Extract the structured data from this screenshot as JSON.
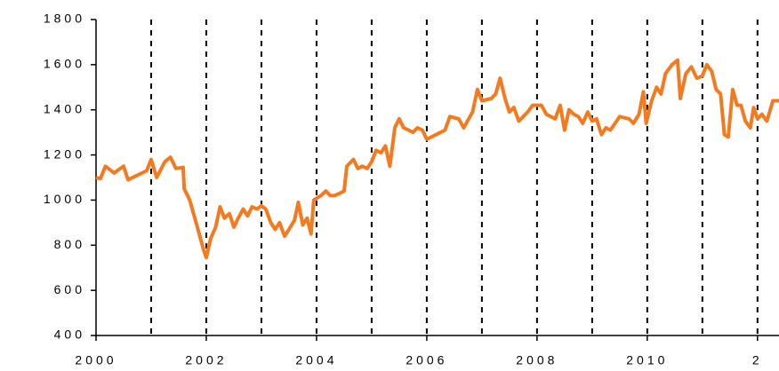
{
  "chart_data": {
    "type": "line",
    "x": [
      2000.0,
      2000.08,
      2000.17,
      2000.33,
      2000.5,
      2000.58,
      2000.75,
      2000.92,
      2001.0,
      2001.1,
      2001.25,
      2001.35,
      2001.45,
      2001.58,
      2001.6,
      2001.7,
      2001.85,
      2001.95,
      2002.0,
      2002.08,
      2002.17,
      2002.25,
      2002.33,
      2002.42,
      2002.5,
      2002.58,
      2002.67,
      2002.75,
      2002.83,
      2002.92,
      2003.0,
      2003.08,
      2003.17,
      2003.25,
      2003.33,
      2003.42,
      2003.5,
      2003.6,
      2003.67,
      2003.75,
      2003.83,
      2003.9,
      2003.95,
      2004.08,
      2004.17,
      2004.25,
      2004.33,
      2004.42,
      2004.5,
      2004.55,
      2004.67,
      2004.75,
      2004.83,
      2004.92,
      2005.0,
      2005.08,
      2005.17,
      2005.25,
      2005.33,
      2005.42,
      2005.5,
      2005.58,
      2005.67,
      2005.75,
      2005.83,
      2005.92,
      2006.0,
      2006.17,
      2006.33,
      2006.42,
      2006.58,
      2006.67,
      2006.83,
      2006.92,
      2007.0,
      2007.17,
      2007.25,
      2007.33,
      2007.42,
      2007.5,
      2007.58,
      2007.67,
      2007.83,
      2007.92,
      2008.08,
      2008.17,
      2008.33,
      2008.42,
      2008.5,
      2008.58,
      2008.67,
      2008.75,
      2008.83,
      2008.92,
      2009.0,
      2009.08,
      2009.17,
      2009.25,
      2009.33,
      2009.5,
      2009.67,
      2009.75,
      2009.85,
      2009.93,
      2009.98,
      2010.08,
      2010.17,
      2010.25,
      2010.33,
      2010.45,
      2010.55,
      2010.6,
      2010.7,
      2010.8,
      2010.9,
      2011.0,
      2011.08,
      2011.17,
      2011.25,
      2011.33,
      2011.4,
      2011.47,
      2011.55,
      2011.63,
      2011.7,
      2011.78,
      2011.87,
      2011.93,
      2012.0,
      2012.08,
      2012.17,
      2012.28,
      2012.39
    ],
    "series": [
      {
        "color": "#f47a20",
        "values": [
          1100,
          1095,
          1150,
          1120,
          1150,
          1090,
          1110,
          1130,
          1180,
          1100,
          1170,
          1190,
          1140,
          1145,
          1050,
          1000,
          870,
          780,
          745,
          830,
          880,
          970,
          920,
          940,
          880,
          920,
          960,
          930,
          970,
          960,
          975,
          960,
          900,
          870,
          900,
          840,
          870,
          910,
          990,
          890,
          920,
          850,
          1000,
          1020,
          1040,
          1020,
          1020,
          1030,
          1040,
          1150,
          1180,
          1140,
          1150,
          1140,
          1170,
          1220,
          1210,
          1240,
          1150,
          1320,
          1360,
          1320,
          1310,
          1300,
          1320,
          1310,
          1270,
          1290,
          1310,
          1370,
          1360,
          1320,
          1390,
          1490,
          1440,
          1450,
          1470,
          1540,
          1450,
          1390,
          1410,
          1350,
          1390,
          1420,
          1420,
          1380,
          1360,
          1420,
          1310,
          1400,
          1380,
          1370,
          1340,
          1390,
          1350,
          1360,
          1290,
          1320,
          1310,
          1370,
          1360,
          1340,
          1380,
          1480,
          1340,
          1440,
          1500,
          1470,
          1560,
          1600,
          1620,
          1450,
          1560,
          1590,
          1540,
          1550,
          1600,
          1570,
          1490,
          1470,
          1290,
          1280,
          1490,
          1420,
          1420,
          1350,
          1320,
          1410,
          1360,
          1380,
          1350,
          1440,
          1440
        ]
      }
    ],
    "xlim": [
      2000,
      2012.39
    ],
    "xticks": [
      2000,
      2002,
      2004,
      2006,
      2008,
      2010,
      {
        "value": 2012,
        "label": "2"
      }
    ],
    "x_gridlines": [
      2001,
      2002,
      2003,
      2004,
      2005,
      2006,
      2007,
      2008,
      2009,
      2010,
      2011,
      2012
    ],
    "ylim": [
      400,
      1800
    ],
    "yticks": [
      400,
      600,
      800,
      1000,
      1200,
      1400,
      1600,
      1800
    ]
  }
}
